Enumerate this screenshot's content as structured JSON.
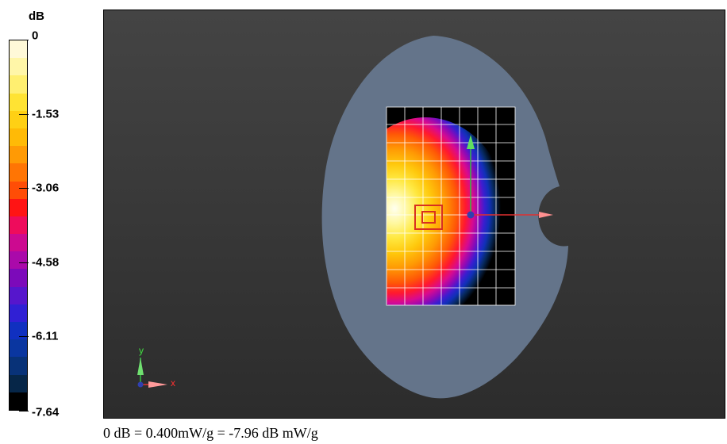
{
  "colorbar": {
    "unit": "dB",
    "labels": [
      "0",
      "-1.53",
      "-3.06",
      "-4.58",
      "-6.11",
      "-7.64"
    ],
    "colors": [
      "#fff9d8",
      "#fff6a8",
      "#ffef70",
      "#ffe333",
      "#ffd014",
      "#ffba06",
      "#ff9a05",
      "#ff7504",
      "#ff4d06",
      "#ff1414",
      "#ee0c5c",
      "#cc0a90",
      "#aa0aaa",
      "#7c0aba",
      "#5616cc",
      "#3020d4",
      "#1030c0",
      "#0a36a0",
      "#083278",
      "#062648",
      "#000000"
    ]
  },
  "axes": {
    "x_label": "x",
    "y_label": "y"
  },
  "caption": "0 dB = 0.400mW/g = -7.96 dB mW/g"
}
